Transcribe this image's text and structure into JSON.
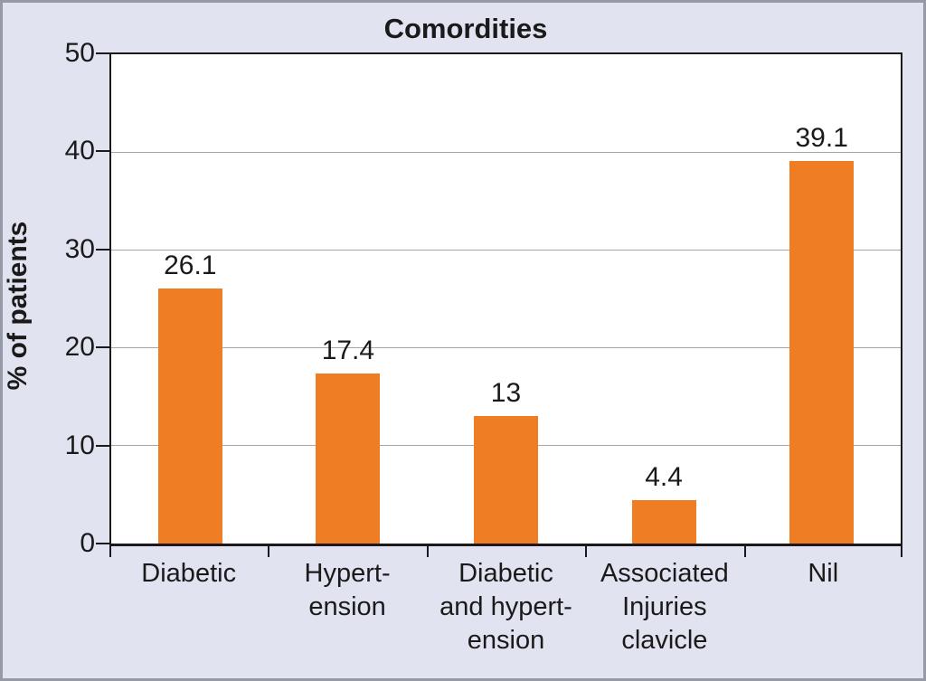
{
  "figure": {
    "background_color": "#E1E4F0",
    "border_color": "#959AA6"
  },
  "chart_data": {
    "type": "bar",
    "title": "Comordities",
    "xlabel": "",
    "ylabel": "% of patients",
    "categories": [
      "Diabetic",
      "Hypert-ension",
      "Diabetic and hypert-ension",
      "Associated Injuries clavicle",
      "Nil"
    ],
    "category_label_lines": [
      [
        "Diabetic"
      ],
      [
        "Hypert-",
        "ension"
      ],
      [
        "Diabetic",
        "and hypert-",
        "ension"
      ],
      [
        "Associated",
        "Injuries",
        "clavicle"
      ],
      [
        "Nil"
      ]
    ],
    "values": [
      26.1,
      17.4,
      13,
      4.4,
      39.1
    ],
    "value_labels": [
      "26.1",
      "17.4",
      "13",
      "4.4",
      "39.1"
    ],
    "ylim": [
      0,
      50
    ],
    "yticks": [
      0,
      10,
      20,
      30,
      40,
      50
    ],
    "grid": "horizontal",
    "legend_position": "none",
    "bar_color": "#EE7D23",
    "plot_background": "#FFFFFF",
    "gridline_color": "#A6A6A6",
    "axis_color": "#1A1A1A",
    "text_color": "#1A1A1A"
  }
}
